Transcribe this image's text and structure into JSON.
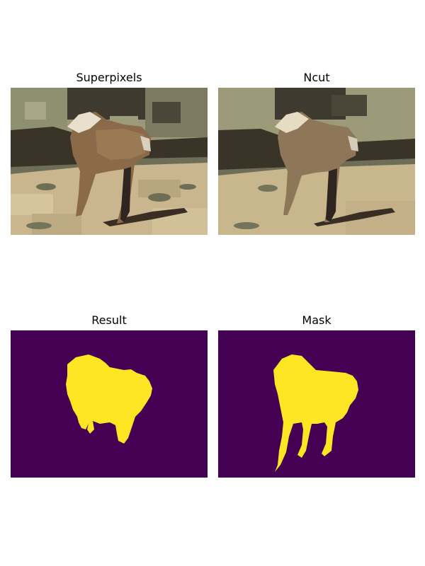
{
  "figure": {
    "panels": [
      {
        "title": "Superpixels",
        "image": "superpixel-segmented horse photo"
      },
      {
        "title": "Ncut",
        "image": "normalized-cut segmented horse photo"
      },
      {
        "title": "Result",
        "image": "binary segmentation result of horse"
      },
      {
        "title": "Mask",
        "image": "ground truth horse mask"
      }
    ]
  },
  "colors": {
    "mask_background": "#440154",
    "mask_foreground": "#fde725"
  }
}
